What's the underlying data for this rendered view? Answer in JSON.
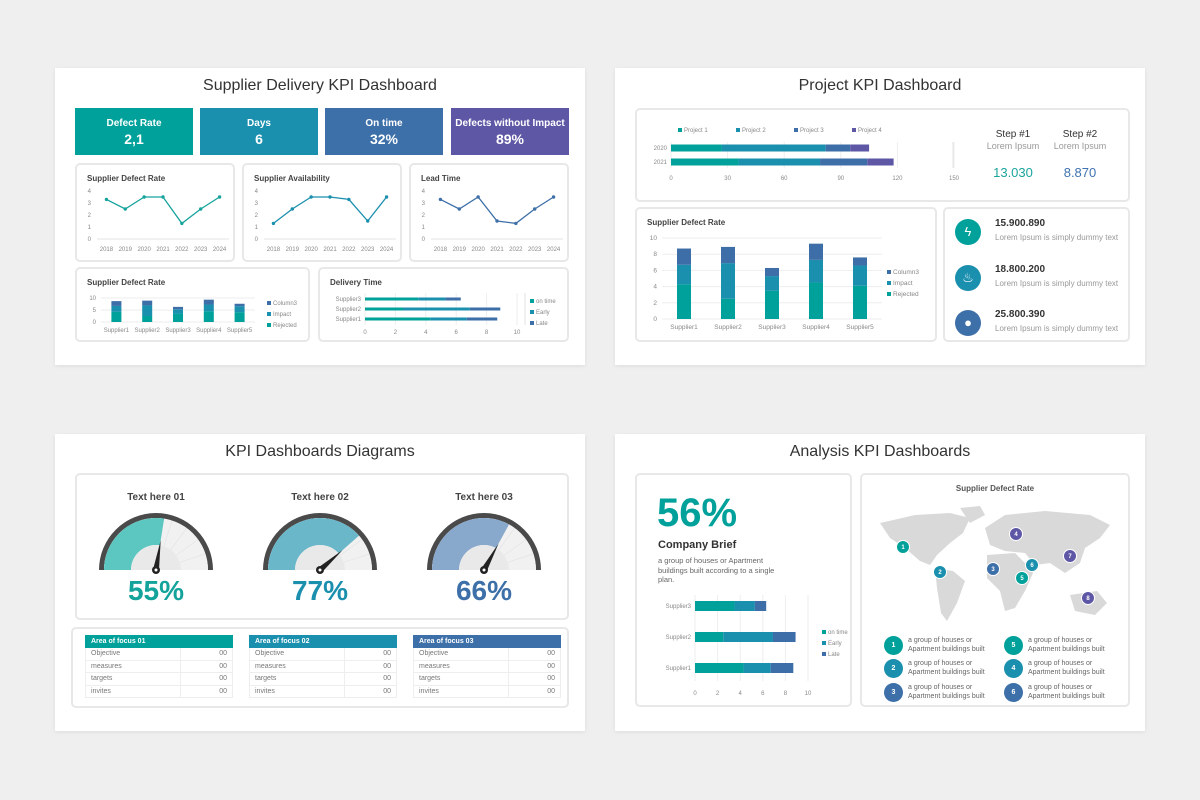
{
  "slides": {
    "supplier": {
      "title": "Supplier Delivery KPI Dashboard",
      "kpis": [
        {
          "label": "Defect Rate",
          "value": "2,1",
          "color": "#00a19a"
        },
        {
          "label": "Days",
          "value": "6",
          "color": "#1b8fae"
        },
        {
          "label": "On time",
          "value": "32%",
          "color": "#3d6fa8"
        },
        {
          "label": "Defects without Impact",
          "value": "89%",
          "color": "#5e57a5"
        }
      ]
    },
    "project": {
      "title": "Project KPI Dashboard",
      "steps": [
        {
          "label": "Step #1",
          "sub": "Lorem Ipsum",
          "value": "13.030",
          "color": "#1aa59b"
        },
        {
          "label": "Step #2",
          "sub": "Lorem Ipsum",
          "value": "8.870",
          "color": "#3f73b0"
        }
      ],
      "stats": [
        {
          "icon": "lightning-icon",
          "glyph": "⚡",
          "value": "15.900.890",
          "text": "Lorem Ipsum is simply dummy text",
          "color": "#00a19a"
        },
        {
          "icon": "flame-icon",
          "glyph": "🔥",
          "value": "18.800.200",
          "text": "Lorem Ipsum is simply dummy text",
          "color": "#1b8fae"
        },
        {
          "icon": "lightbulb-icon",
          "glyph": "💡",
          "value": "25.800.390",
          "text": "Lorem Ipsum is simply dummy text",
          "color": "#3d6fa8"
        }
      ]
    },
    "diagrams": {
      "title": "KPI Dashboards Diagrams",
      "gauges": [
        {
          "label": "Text here 01",
          "value": 55,
          "display": "55%",
          "fill": "#5cc6c0",
          "text_color": "#13a39b"
        },
        {
          "label": "Text here 02",
          "value": 77,
          "display": "77%",
          "fill": "#6ab7c9",
          "text_color": "#1b8fae"
        },
        {
          "label": "Text here 03",
          "value": 66,
          "display": "66%",
          "fill": "#88a8cc",
          "text_color": "#3d6fa8"
        }
      ],
      "tables": [
        {
          "header": "Area of focus 01",
          "color": "#00a19a",
          "rows": [
            [
              "Objective",
              "00"
            ],
            [
              "measures",
              "00"
            ],
            [
              "targets",
              "00"
            ],
            [
              "invites",
              "00"
            ]
          ]
        },
        {
          "header": "Area of focus 02",
          "color": "#1b8fae",
          "rows": [
            [
              "Objective",
              "00"
            ],
            [
              "measures",
              "00"
            ],
            [
              "targets",
              "00"
            ],
            [
              "invites",
              "00"
            ]
          ]
        },
        {
          "header": "Area of focus 03",
          "color": "#3d6fa8",
          "rows": [
            [
              "Objective",
              "00"
            ],
            [
              "measures",
              "00"
            ],
            [
              "targets",
              "00"
            ],
            [
              "invites",
              "00"
            ]
          ]
        }
      ]
    },
    "analysis": {
      "title": "Analysis KPI Dashboards",
      "big_percent": "56%",
      "brief_title": "Company Brief",
      "brief_text": "a group of houses or Apartment buildings built according to a single plan.",
      "map_title": "Supplier Defect Rate",
      "map_markers": [
        {
          "n": "1",
          "color": "#00a19a"
        },
        {
          "n": "2",
          "color": "#1b8fae"
        },
        {
          "n": "3",
          "color": "#3d6fa8"
        },
        {
          "n": "6",
          "color": "#1b8fae"
        },
        {
          "n": "5",
          "color": "#00a19a"
        },
        {
          "n": "4",
          "color": "#5e57a5"
        },
        {
          "n": "7",
          "color": "#5e57a5"
        },
        {
          "n": "8",
          "color": "#5e57a5"
        }
      ],
      "legend": [
        {
          "n": "1",
          "text": "a group of houses or\nApartment buildings built",
          "color": "#00a19a"
        },
        {
          "n": "2",
          "text": "a group of houses or\nApartment buildings built",
          "color": "#1b8fae"
        },
        {
          "n": "3",
          "text": "a group of houses or\nApartment buildings built",
          "color": "#3d6fa8"
        },
        {
          "n": "5",
          "text": "a group of houses or\nApartment buildings built",
          "color": "#00a19a"
        },
        {
          "n": "4",
          "text": "a group of houses or\nApartment buildings built",
          "color": "#1b8fae"
        },
        {
          "n": "6",
          "text": "a group of houses or\nApartment buildings built",
          "color": "#3d6fa8"
        }
      ]
    }
  },
  "chart_data": [
    {
      "type": "line",
      "title": "Supplier Defect Rate",
      "categories": [
        "2018",
        "2019",
        "2020",
        "2021",
        "2022",
        "2023",
        "2024"
      ],
      "series": [
        {
          "values": [
            3.3,
            2.5,
            3.5,
            3.5,
            1.3,
            2.5,
            3.5
          ]
        }
      ],
      "ylim": [
        0,
        4
      ],
      "yticks": [
        0,
        1,
        2,
        3,
        4
      ],
      "color": "#16a39c"
    },
    {
      "type": "line",
      "title": "Supplier Availability",
      "categories": [
        "2018",
        "2019",
        "2020",
        "2021",
        "2022",
        "2023",
        "2024"
      ],
      "series": [
        {
          "values": [
            1.3,
            2.5,
            3.5,
            3.5,
            3.3,
            1.5,
            3.5
          ]
        }
      ],
      "ylim": [
        0,
        4
      ],
      "yticks": [
        0,
        1,
        2,
        3,
        4
      ],
      "color": "#1b8fae"
    },
    {
      "type": "line",
      "title": "Lead Time",
      "categories": [
        "2018",
        "2019",
        "2020",
        "2021",
        "2022",
        "2023",
        "2024"
      ],
      "series": [
        {
          "values": [
            3.3,
            2.5,
            3.5,
            1.5,
            1.3,
            2.5,
            3.5
          ]
        }
      ],
      "ylim": [
        0,
        4
      ],
      "yticks": [
        0,
        1,
        2,
        3,
        4
      ],
      "color": "#3d6fa8"
    },
    {
      "type": "bar",
      "stacked": true,
      "orientation": "vertical",
      "title": "Supplier Defect Rate",
      "categories": [
        "Supplier1",
        "Supplier2",
        "Supplier3",
        "Supplier4",
        "Supplier5"
      ],
      "series": [
        {
          "name": "Rejected",
          "values": [
            4.3,
            2.5,
            3.5,
            4.5,
            4.1
          ],
          "color": "#00a19a"
        },
        {
          "name": "Impact",
          "values": [
            2.4,
            4.4,
            1.8,
            2.8,
            2.5
          ],
          "color": "#1b8fae"
        },
        {
          "name": "Column3",
          "values": [
            2.0,
            2.0,
            1.0,
            2.0,
            1.0
          ],
          "color": "#3e6ea8"
        }
      ],
      "ylim": [
        0,
        10
      ],
      "yticks": [
        0,
        5,
        10
      ],
      "legend": "right"
    },
    {
      "type": "bar",
      "stacked": true,
      "orientation": "horizontal",
      "title": "Delivery Time",
      "categories": [
        "Supplier3",
        "Supplier2",
        "Supplier1"
      ],
      "series": [
        {
          "name": "on time",
          "values": [
            3.5,
            2.5,
            4.3
          ],
          "color": "#00a19a"
        },
        {
          "name": "Early",
          "values": [
            1.8,
            4.4,
            2.4
          ],
          "color": "#1b8fae"
        },
        {
          "name": "Late",
          "values": [
            1.0,
            2.0,
            2.0
          ],
          "color": "#3e6ea8"
        }
      ],
      "xlim": [
        0,
        10
      ],
      "xticks": [
        0,
        2,
        4,
        6,
        8,
        10
      ],
      "legend": "right"
    },
    {
      "type": "bar",
      "stacked": true,
      "orientation": "horizontal",
      "title": "",
      "categories": [
        "2020",
        "2021"
      ],
      "series": [
        {
          "name": "Project 1",
          "values": [
            27,
            36
          ],
          "color": "#00a19a"
        },
        {
          "name": "Project 2",
          "values": [
            55,
            43
          ],
          "color": "#1b8fae"
        },
        {
          "name": "Project 3",
          "values": [
            13,
            25
          ],
          "color": "#3e6ea8"
        },
        {
          "name": "Project 4",
          "values": [
            10,
            14
          ],
          "color": "#5e57a5"
        }
      ],
      "xlim": [
        0,
        150
      ],
      "xticks": [
        0,
        30,
        60,
        90,
        120,
        150
      ],
      "legend": "top"
    },
    {
      "type": "bar",
      "stacked": true,
      "orientation": "vertical",
      "title": "Supplier Defect Rate",
      "categories": [
        "Supplier1",
        "Supplier2",
        "Supplier3",
        "Supplier4",
        "Supplier5"
      ],
      "series": [
        {
          "name": "Rejected",
          "values": [
            4.3,
            2.5,
            3.5,
            4.5,
            4.1
          ],
          "color": "#00a19a"
        },
        {
          "name": "Impact",
          "values": [
            2.4,
            4.4,
            1.8,
            2.8,
            2.5
          ],
          "color": "#1b8fae"
        },
        {
          "name": "Column3",
          "values": [
            2.0,
            2.0,
            1.0,
            2.0,
            1.0
          ],
          "color": "#3e6ea8"
        }
      ],
      "ylim": [
        0,
        10
      ],
      "yticks": [
        0,
        2,
        4,
        6,
        8,
        10
      ],
      "legend": "right"
    },
    {
      "type": "bar",
      "stacked": true,
      "orientation": "horizontal",
      "title": "",
      "categories": [
        "Supplier3",
        "Supplier2",
        "Supplier1"
      ],
      "series": [
        {
          "name": "on time",
          "values": [
            3.5,
            2.5,
            4.3
          ],
          "color": "#00a19a"
        },
        {
          "name": "Early",
          "values": [
            1.8,
            4.4,
            2.4
          ],
          "color": "#1b8fae"
        },
        {
          "name": "Late",
          "values": [
            1.0,
            2.0,
            2.0
          ],
          "color": "#3e6ea8"
        }
      ],
      "xlim": [
        0,
        10
      ],
      "xticks": [
        0,
        2,
        4,
        6,
        8,
        10
      ],
      "legend": "right"
    }
  ]
}
